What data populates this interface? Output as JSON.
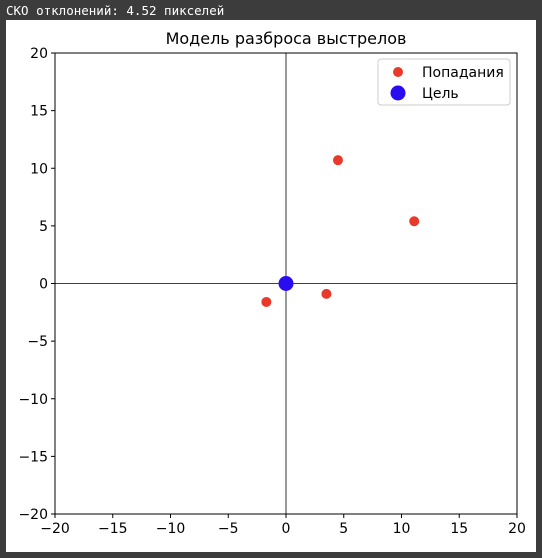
{
  "status_text": "СКО отклонений: 4.52 пикселей",
  "chart_data": {
    "type": "scatter",
    "title": "Модель разброса выстрелов",
    "xlabel": "",
    "ylabel": "",
    "xlim": [
      -20,
      20
    ],
    "ylim": [
      -20,
      20
    ],
    "xticks": [
      -20,
      -15,
      -10,
      -5,
      0,
      5,
      10,
      15,
      20
    ],
    "yticks": [
      -20,
      -15,
      -10,
      -5,
      0,
      5,
      10,
      15,
      20
    ],
    "grid": false,
    "axis_lines_through_origin": true,
    "legend_position": "top-right",
    "series": [
      {
        "name": "Попадания",
        "color": "#e8392a",
        "marker": "circle-small",
        "points": [
          {
            "x": 4.5,
            "y": 10.7
          },
          {
            "x": 11.1,
            "y": 5.4
          },
          {
            "x": 3.5,
            "y": -0.9
          },
          {
            "x": -1.7,
            "y": -1.6
          }
        ]
      },
      {
        "name": "Цель",
        "color": "#2a0cf0",
        "marker": "circle-large",
        "points": [
          {
            "x": 0,
            "y": 0
          }
        ]
      }
    ]
  }
}
